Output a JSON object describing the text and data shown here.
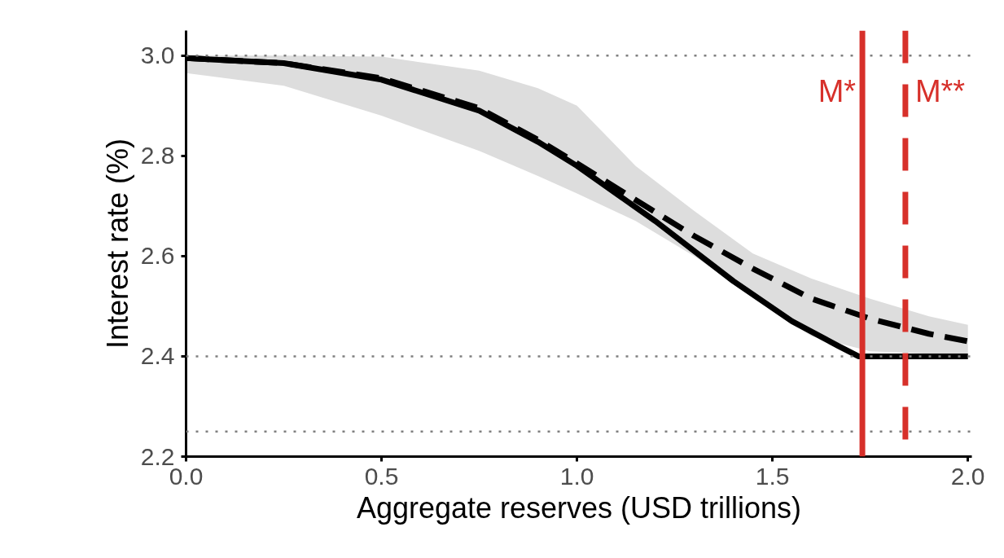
{
  "chart_data": {
    "type": "line",
    "xlabel": "Aggregate reserves (USD trillions)",
    "ylabel": "Interest rate (%)",
    "xlim": [
      0,
      2.01
    ],
    "xticks": [
      {
        "value": 0,
        "label": "0.0"
      },
      0.5,
      {
        "value": 1,
        "label": "1.0"
      },
      1.5,
      {
        "value": 2,
        "label": "2.0"
      }
    ],
    "ylim": [
      2.2,
      3.05
    ],
    "yticks": [
      2.2,
      2.4,
      2.6,
      2.8,
      {
        "value": 3,
        "label": "3.0"
      }
    ],
    "grid": false,
    "series": [
      {
        "color": "#000000",
        "line_style": "dashed",
        "x": [
          0,
          0.25,
          0.5,
          0.75,
          0.9,
          1.0,
          1.15,
          1.3,
          1.45,
          1.6,
          1.75,
          1.9,
          2.0
        ],
        "values": [
          2.995,
          2.985,
          2.955,
          2.895,
          2.832,
          2.785,
          2.712,
          2.64,
          2.575,
          2.515,
          2.475,
          2.445,
          2.43
        ],
        "upper": [
          3.0,
          3.0,
          2.998,
          2.97,
          2.935,
          2.9,
          2.78,
          2.69,
          2.605,
          2.555,
          2.515,
          2.48,
          2.463
        ],
        "lower": [
          2.965,
          2.94,
          2.88,
          2.81,
          2.76,
          2.725,
          2.67,
          2.6,
          2.52,
          2.44,
          2.41,
          2.405,
          2.405
        ]
      },
      {
        "color": "#000000",
        "line_style": "solid",
        "x": [
          0,
          0.25,
          0.5,
          0.75,
          0.9,
          1.0,
          1.2,
          1.4,
          1.55,
          1.67,
          1.72,
          2.0
        ],
        "values": [
          2.995,
          2.985,
          2.952,
          2.89,
          2.828,
          2.78,
          2.67,
          2.55,
          2.47,
          2.42,
          2.4,
          2.4
        ]
      }
    ],
    "ref_lines": [
      {
        "axis": "y",
        "value": 3.0,
        "color": "#7f7f7f",
        "line_style": "dotted"
      },
      {
        "axis": "y",
        "value": 2.4,
        "color": "#7f7f7f",
        "line_style": "dotted"
      },
      {
        "axis": "y",
        "value": 2.25,
        "color": "#7f7f7f",
        "line_style": "dotted"
      },
      {
        "axis": "x",
        "value": 1.73,
        "label": "M*",
        "color": "#d7302a",
        "line_style": "solid"
      },
      {
        "axis": "x",
        "value": 1.84,
        "label": "M**",
        "color": "#d7302a",
        "line_style": "dashed"
      }
    ]
  }
}
